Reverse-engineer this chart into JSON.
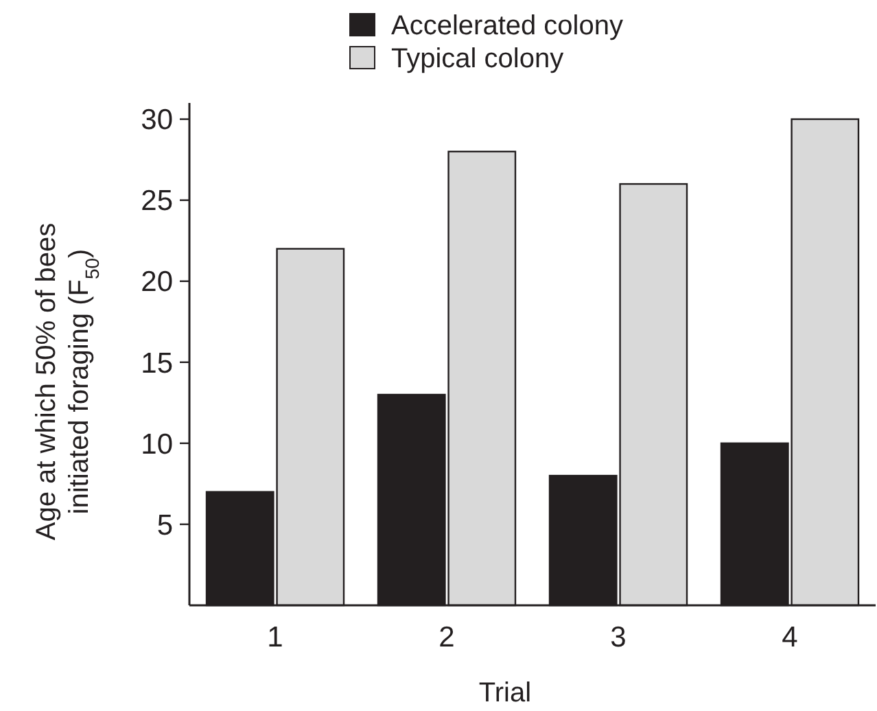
{
  "chart_data": {
    "type": "bar",
    "xlabel": "Trial",
    "ylabel": "Age at which 50% of bees\ninitiated foraging (F$_{50}$)",
    "categories": [
      "1",
      "2",
      "3",
      "4"
    ],
    "series": [
      {
        "name": "Accelerated colony",
        "color": "#231f20",
        "values": [
          7,
          13,
          8,
          10
        ]
      },
      {
        "name": "Typical colony",
        "color": "#d9d9d9",
        "values": [
          22,
          28,
          26,
          30
        ]
      }
    ],
    "ylim": [
      0,
      31
    ],
    "yticks": [
      5,
      10,
      15,
      20,
      25,
      30
    ],
    "grid": false,
    "legend": "top"
  }
}
